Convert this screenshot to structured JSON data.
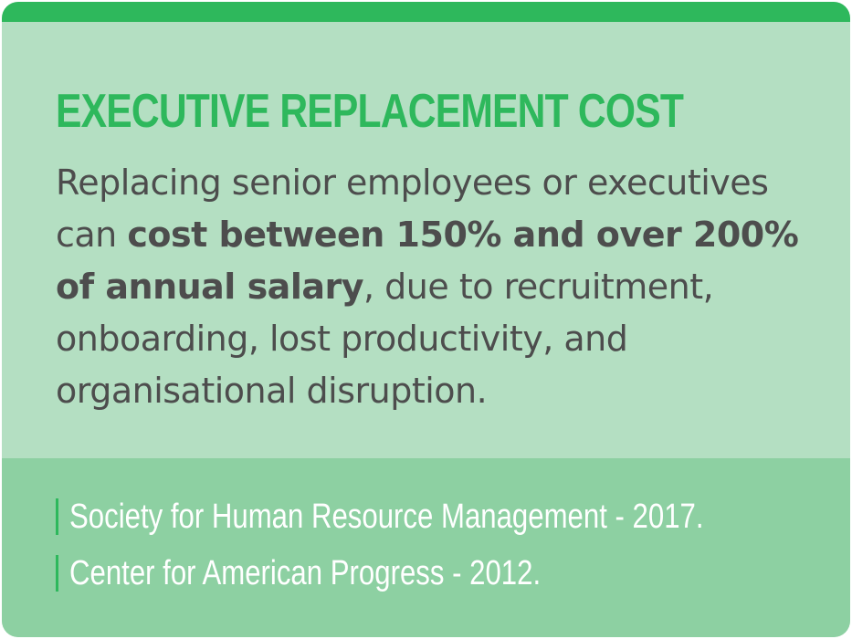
{
  "card": {
    "title": "EXECUTIVE REPLACEMENT COST",
    "body": {
      "part1": "Replacing senior employees or executives can ",
      "bold": "cost between 150% and over 200% of annual salary",
      "part2": ", due to recruitment, onboarding, lost productivity, and organisational disruption."
    }
  },
  "sources": [
    "Society for Human Resource Management - 2017.",
    "Center for American Progress - 2012."
  ],
  "colors": {
    "accent_green": "#2eb85c",
    "upper_bg": "#b4dfc2",
    "lower_bg": "#8dd0a2",
    "body_text": "#4d4d4d",
    "source_text": "#ffffff"
  }
}
